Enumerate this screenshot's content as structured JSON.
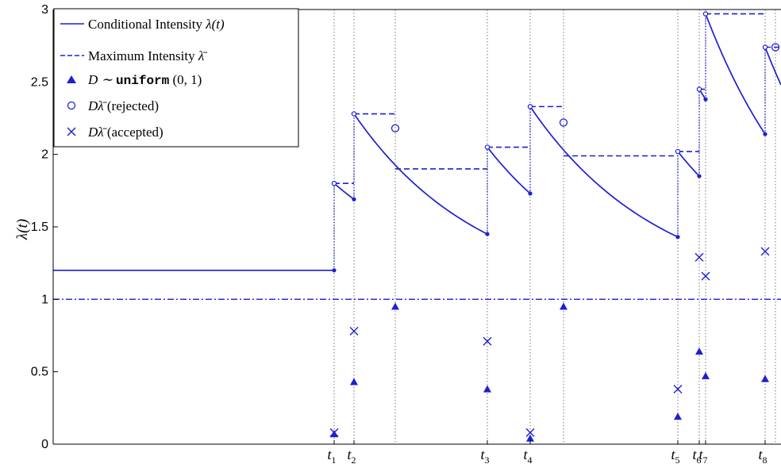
{
  "chart_data": {
    "type": "line",
    "title": "",
    "xlabel": "",
    "ylabel": "λ(t)",
    "xlim": [
      0,
      984
    ],
    "ylim": [
      0,
      3
    ],
    "yticks": [
      0,
      0.5,
      1,
      1.5,
      2,
      2.5,
      3
    ],
    "ytick_labels": [
      "0",
      "0.5",
      "1",
      "1.5",
      "2",
      "2.5",
      "3"
    ],
    "colors": {
      "series": "#1f1fd0",
      "guide": "#777777",
      "axis": "#000000"
    },
    "legend": {
      "placement": "top-left",
      "entries": [
        {
          "id": "ci",
          "prefix": "Conditional Intensity ",
          "math": "λ(t)"
        },
        {
          "id": "max",
          "prefix": "Maximum Intensity ",
          "math": "λ̄"
        },
        {
          "id": "tri",
          "math": "D ∼ ",
          "mono": "uniform",
          "suffix": " (0, 1)"
        },
        {
          "id": "circ",
          "math": "Dλ̄",
          "suffix": " (rejected)"
        },
        {
          "id": "cross",
          "math": "Dλ̄",
          "suffix": " (accepted)"
        }
      ]
    },
    "baseline": {
      "name": "",
      "y": 1.0
    },
    "events": [
      {
        "label": "t",
        "sub": "1",
        "x": 421
      },
      {
        "label": "t",
        "sub": "2",
        "x": 446
      },
      {
        "label": "t",
        "sub": "3",
        "x": 614
      },
      {
        "label": "t",
        "sub": "4",
        "x": 668
      },
      {
        "label": "t",
        "sub": "5",
        "x": 854
      },
      {
        "label": "t",
        "sub": "6",
        "x": 881
      },
      {
        "label": "t",
        "sub": "7",
        "x": 889
      },
      {
        "label": "t",
        "sub": "8",
        "x": 964
      }
    ],
    "rejected_times": [
      498,
      710,
      977
    ],
    "intensity_segments": [
      {
        "x0": 67,
        "x1": 421,
        "start": 1.2,
        "end": 1.2
      },
      {
        "x0": 421,
        "x1": 446,
        "start": 1.8,
        "end": 1.69
      },
      {
        "x0": 446,
        "x1": 614,
        "start": 2.28,
        "end": 1.45
      },
      {
        "x0": 614,
        "x1": 668,
        "start": 2.05,
        "end": 1.73
      },
      {
        "x0": 668,
        "x1": 854,
        "start": 2.33,
        "end": 1.43
      },
      {
        "x0": 854,
        "x1": 881,
        "start": 2.02,
        "end": 1.85
      },
      {
        "x0": 881,
        "x1": 889,
        "start": 2.45,
        "end": 2.38
      },
      {
        "x0": 889,
        "x1": 964,
        "start": 2.97,
        "end": 2.14
      },
      {
        "x0": 964,
        "x1": 984,
        "start": 2.74,
        "end": 2.48
      }
    ],
    "max_intensity_steps": [
      {
        "x0": 421,
        "x1": 446,
        "y": 1.8
      },
      {
        "x0": 446,
        "x1": 498,
        "y": 2.28
      },
      {
        "x0": 498,
        "x1": 614,
        "y": 1.9
      },
      {
        "x0": 614,
        "x1": 668,
        "y": 2.05
      },
      {
        "x0": 668,
        "x1": 710,
        "y": 2.33
      },
      {
        "x0": 710,
        "x1": 854,
        "y": 1.99
      },
      {
        "x0": 854,
        "x1": 881,
        "y": 2.02
      },
      {
        "x0": 881,
        "x1": 889,
        "y": 2.45
      },
      {
        "x0": 889,
        "x1": 964,
        "y": 2.97
      },
      {
        "x0": 964,
        "x1": 984,
        "y": 2.74
      }
    ],
    "uniform_draws": [
      {
        "x": 421,
        "y": 0.07
      },
      {
        "x": 446,
        "y": 0.43
      },
      {
        "x": 498,
        "y": 0.95
      },
      {
        "x": 614,
        "y": 0.38
      },
      {
        "x": 668,
        "y": 0.04
      },
      {
        "x": 710,
        "y": 0.95
      },
      {
        "x": 854,
        "y": 0.19
      },
      {
        "x": 881,
        "y": 0.64
      },
      {
        "x": 889,
        "y": 0.47
      },
      {
        "x": 964,
        "y": 0.45
      }
    ],
    "rejected_points": [
      {
        "x": 498,
        "y": 2.18
      },
      {
        "x": 710,
        "y": 2.22
      },
      {
        "x": 977,
        "y": 2.74
      }
    ],
    "accepted_points": [
      {
        "x": 421,
        "y": 0.08
      },
      {
        "x": 446,
        "y": 0.78
      },
      {
        "x": 614,
        "y": 0.71
      },
      {
        "x": 668,
        "y": 0.08
      },
      {
        "x": 854,
        "y": 0.38
      },
      {
        "x": 881,
        "y": 1.29
      },
      {
        "x": 889,
        "y": 1.16
      },
      {
        "x": 964,
        "y": 1.33
      }
    ]
  }
}
